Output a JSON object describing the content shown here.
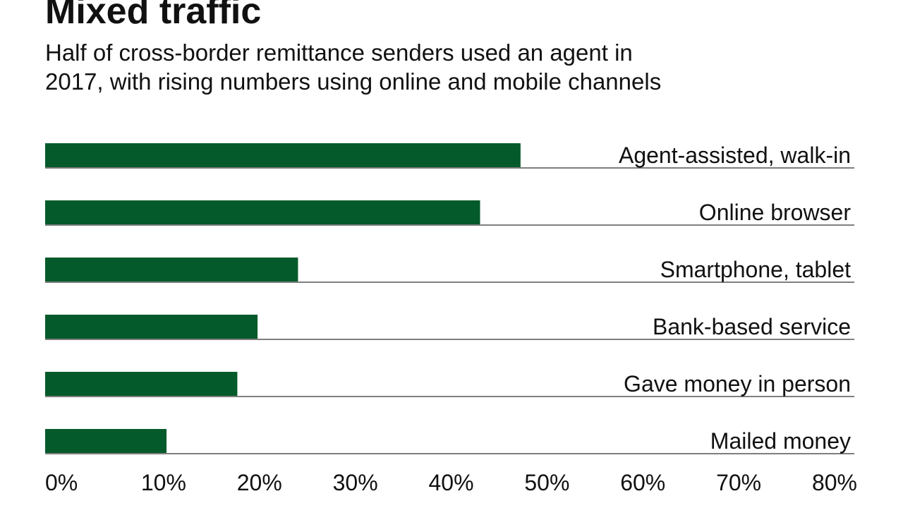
{
  "chart_data": {
    "type": "bar",
    "orientation": "horizontal",
    "title": "Mixed traffic",
    "subtitle": [
      "Half of cross-border remittance senders used an agent in",
      "2017, with rising numbers using online and mobile channels"
    ],
    "categories": [
      "Agent-assisted, walk-in",
      "Online browser",
      "Smartphone, tablet",
      "Bank-based service",
      "Gave money in person",
      "Mailed money"
    ],
    "values": [
      47,
      43,
      25,
      21,
      19,
      12
    ],
    "color": "#045a2a",
    "xlim": [
      0,
      80
    ],
    "xticks": [
      {
        "value": 0,
        "label": "0%"
      },
      {
        "value": 10,
        "label": "10%"
      },
      {
        "value": 20,
        "label": "20%"
      },
      {
        "value": 30,
        "label": "30%"
      },
      {
        "value": 40,
        "label": "40%"
      },
      {
        "value": 50,
        "label": "50%"
      },
      {
        "value": 60,
        "label": "60%"
      },
      {
        "value": 70,
        "label": "70%"
      },
      {
        "value": 80,
        "label": "80%"
      }
    ]
  }
}
